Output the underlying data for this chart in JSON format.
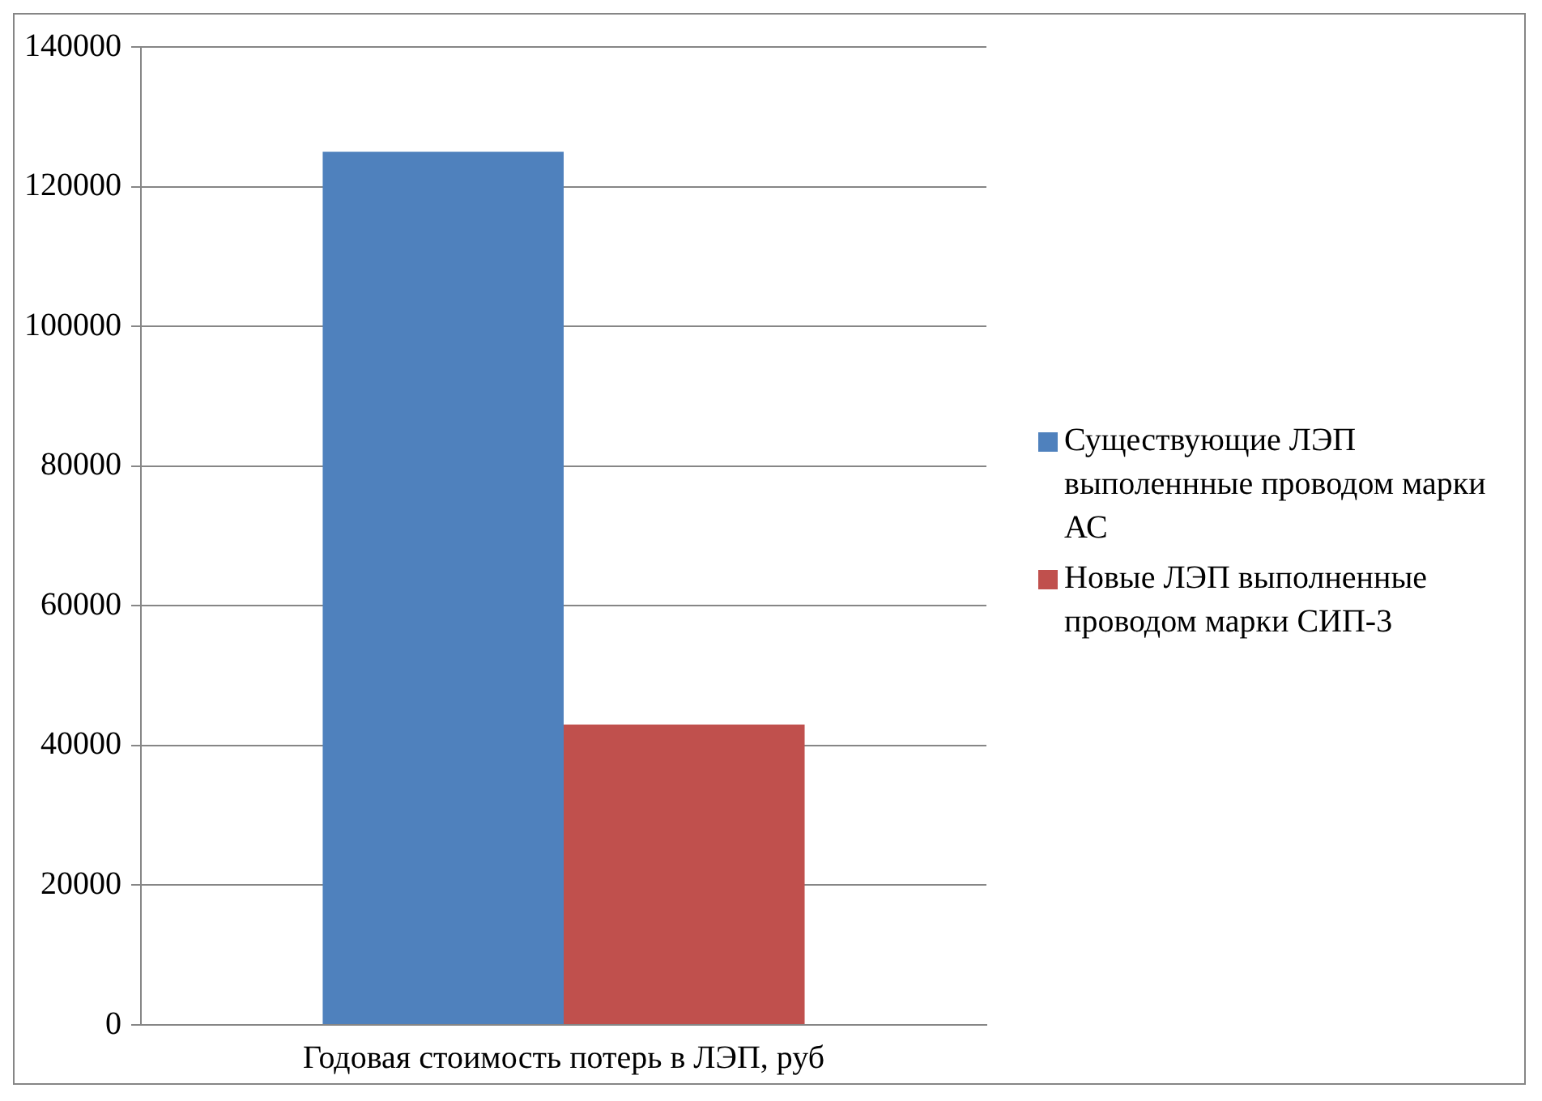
{
  "chart_data": {
    "type": "bar",
    "categories": [
      "Годовая стоимость потерь в ЛЭП, руб"
    ],
    "series": [
      {
        "name": "Существующие ЛЭП выполеннные проводом марки АС",
        "color": "#4f81bd",
        "values": [
          125000
        ]
      },
      {
        "name": "Новые ЛЭП выполненные проводом марки СИП-3",
        "color": "#c0504d",
        "values": [
          43000
        ]
      }
    ],
    "ylim": [
      0,
      140000
    ],
    "yticks": [
      0,
      20000,
      40000,
      60000,
      80000,
      100000,
      120000,
      140000
    ],
    "grid": "y",
    "legend": "right"
  }
}
